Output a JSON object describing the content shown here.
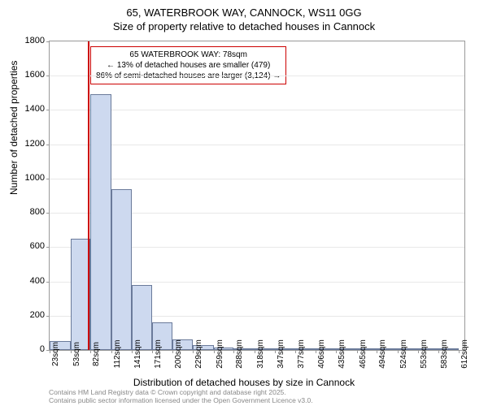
{
  "chart": {
    "type": "histogram",
    "title_line1": "65, WATERBROOK WAY, CANNOCK, WS11 0GG",
    "title_line2": "Size of property relative to detached houses in Cannock",
    "ylabel": "Number of detached properties",
    "xlabel": "Distribution of detached houses by size in Cannock",
    "background_color": "#ffffff",
    "grid_color": "#e8e8e8",
    "axis_color": "#999999",
    "bar_fill": "#cdd9ef",
    "bar_stroke": "#6a7a9a",
    "marker_color": "#cc0000",
    "title_fontsize": 13,
    "label_fontsize": 12,
    "tick_fontsize": 11,
    "annotation_fontsize": 10,
    "footer_fontsize": 8.5,
    "footer_color": "#888888",
    "ylim": [
      0,
      1800
    ],
    "ytick_step": 200,
    "yticks": [
      0,
      200,
      400,
      600,
      800,
      1000,
      1200,
      1400,
      1600,
      1800
    ],
    "xticks": [
      "23sqm",
      "53sqm",
      "82sqm",
      "112sqm",
      "141sqm",
      "171sqm",
      "200sqm",
      "229sqm",
      "259sqm",
      "288sqm",
      "318sqm",
      "347sqm",
      "377sqm",
      "406sqm",
      "435sqm",
      "465sqm",
      "494sqm",
      "524sqm",
      "553sqm",
      "583sqm",
      "612sqm"
    ],
    "x_min": 23,
    "x_max": 620,
    "bars": [
      {
        "x0": 23,
        "x1": 53,
        "count": 50
      },
      {
        "x0": 53,
        "x1": 82,
        "count": 650
      },
      {
        "x0": 82,
        "x1": 112,
        "count": 1490
      },
      {
        "x0": 112,
        "x1": 141,
        "count": 940
      },
      {
        "x0": 141,
        "x1": 171,
        "count": 380
      },
      {
        "x0": 171,
        "x1": 200,
        "count": 160
      },
      {
        "x0": 200,
        "x1": 229,
        "count": 60
      },
      {
        "x0": 229,
        "x1": 259,
        "count": 30
      },
      {
        "x0": 259,
        "x1": 288,
        "count": 15
      },
      {
        "x0": 288,
        "x1": 318,
        "count": 8
      },
      {
        "x0": 318,
        "x1": 347,
        "count": 6
      },
      {
        "x0": 347,
        "x1": 377,
        "count": 5
      },
      {
        "x0": 377,
        "x1": 406,
        "count": 10
      },
      {
        "x0": 406,
        "x1": 435,
        "count": 3
      },
      {
        "x0": 435,
        "x1": 465,
        "count": 2
      },
      {
        "x0": 465,
        "x1": 494,
        "count": 2
      },
      {
        "x0": 494,
        "x1": 524,
        "count": 1
      },
      {
        "x0": 524,
        "x1": 553,
        "count": 1
      },
      {
        "x0": 553,
        "x1": 583,
        "count": 1
      },
      {
        "x0": 583,
        "x1": 612,
        "count": 1
      }
    ],
    "marker_x": 78,
    "annotation": {
      "line1": "65 WATERBROOK WAY: 78sqm",
      "line2": "← 13% of detached houses are smaller (479)",
      "line3": "86% of semi-detached houses are larger (3,124) →"
    },
    "footer_line1": "Contains HM Land Registry data © Crown copyright and database right 2025.",
    "footer_line2": "Contains public sector information licensed under the Open Government Licence v3.0."
  }
}
